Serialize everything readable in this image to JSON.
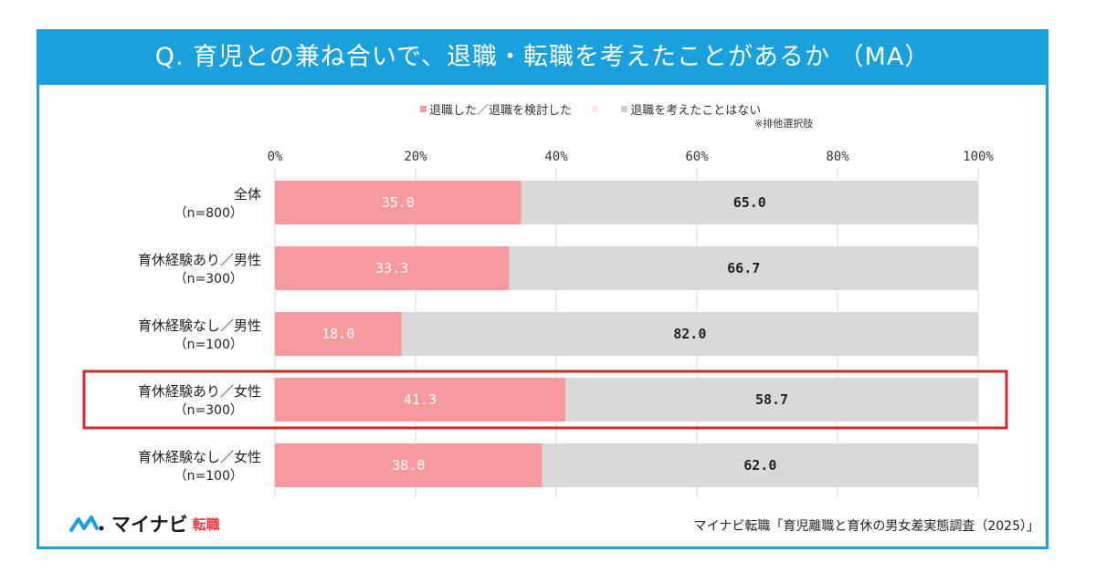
{
  "title": "Q. 育児との兼ね合いで、退職・転職を考えたことがあるか （MA）",
  "legend_note": "※排他選択肢",
  "source": "マイナビ転職「育児離職と育休の男女差実態調査（2025）」",
  "brand": {
    "name": "マイナビ",
    "sub": "転職",
    "logo_icon": "mynavi-wave-icon"
  },
  "colors": {
    "frame": "#1aa0dd",
    "series_1": "#f79a9d",
    "series_2": "#d9d9d9",
    "highlight": "#d9272e"
  },
  "chart_data": {
    "type": "bar",
    "orientation": "horizontal",
    "stacked": true,
    "categories": [
      "全体\n（n=800）",
      "育休経験あり／男性\n（n=300）",
      "育休経験なし／男性\n（n=100）",
      "育休経験あり／女性\n（n=300）",
      "育休経験なし／女性\n（n=100）"
    ],
    "series": [
      {
        "name": "退職した／退職を検討した",
        "values": [
          35.0,
          33.3,
          18.0,
          41.3,
          38.0
        ]
      },
      {
        "name": "",
        "values": [
          0,
          0,
          0,
          0,
          0
        ]
      },
      {
        "name": "退職を考えたことはない",
        "values": [
          65.0,
          66.7,
          82.0,
          58.7,
          62.0
        ]
      }
    ],
    "value_labels": [
      [
        "35.0",
        "65.0"
      ],
      [
        "33.3",
        "66.7"
      ],
      [
        "18.0",
        "82.0"
      ],
      [
        "41.3",
        "58.7"
      ],
      [
        "38.0",
        "62.0"
      ]
    ],
    "xticks": [
      "0%",
      "20%",
      "40%",
      "60%",
      "80%",
      "100%"
    ],
    "xlim": [
      0,
      100
    ],
    "legend_position": "top",
    "highlighted_category_index": 3,
    "grid": true
  }
}
